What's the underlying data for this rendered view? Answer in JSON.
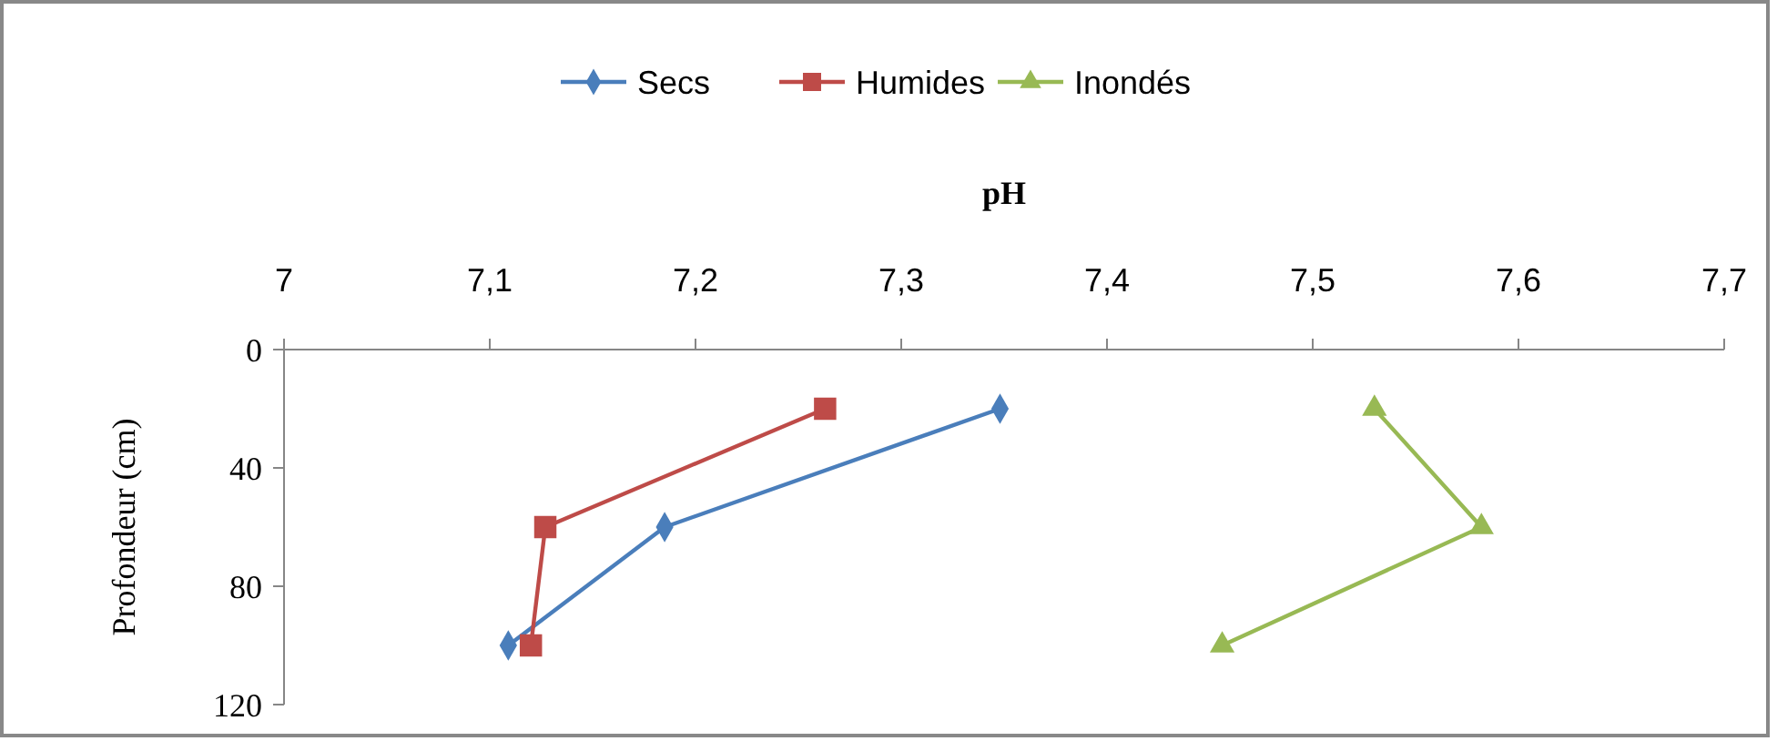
{
  "chart_data": {
    "type": "line",
    "xlabel": "pH",
    "ylabel": "Profondeur (cm)",
    "xlim": [
      7,
      7.7
    ],
    "xticks": [
      7,
      {
        "value": 7.1,
        "label": "7,1"
      },
      {
        "value": 7.2,
        "label": "7,2"
      },
      {
        "value": 7.3,
        "label": "7,3"
      },
      {
        "value": 7.4,
        "label": "7,4"
      },
      {
        "value": 7.5,
        "label": "7,5"
      },
      {
        "value": 7.6,
        "label": "7,6"
      },
      {
        "value": 7.7,
        "label": "7,7"
      }
    ],
    "ylim": [
      120,
      0
    ],
    "yticks": [
      0,
      40,
      80,
      120
    ],
    "grid": false,
    "legend": "top",
    "series": [
      {
        "name": "Secs",
        "color": "#4a7ebb",
        "marker": "diamond",
        "x": [
          7.348,
          7.185,
          7.109
        ],
        "values": [
          20,
          60,
          100
        ]
      },
      {
        "name": "Humides",
        "color": "#be4b48",
        "marker": "square",
        "x": [
          7.263,
          7.127,
          7.12
        ],
        "values": [
          20,
          60,
          100
        ]
      },
      {
        "name": "Inondés",
        "color": "#98b954",
        "marker": "triangle",
        "x": [
          7.53,
          7.582,
          7.456
        ],
        "values": [
          20,
          60,
          100
        ]
      }
    ]
  }
}
